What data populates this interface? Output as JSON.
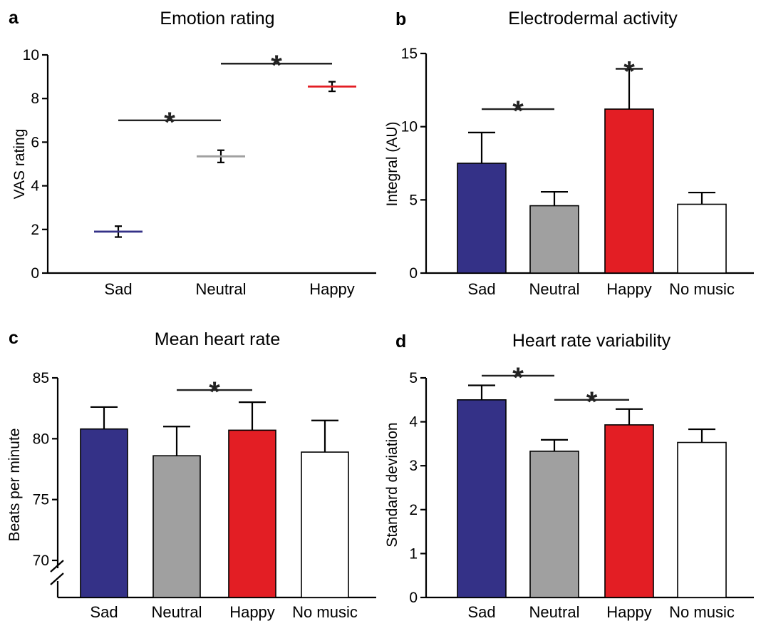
{
  "colors": {
    "sad": "#343187",
    "neutral": "#a0a0a0",
    "happy": "#e31e24",
    "no_music": "#ffffff"
  },
  "chart_data": [
    {
      "panel": "a",
      "type": "scatter",
      "title": "Emotion rating",
      "ylabel": "VAS rating",
      "xlabel": "",
      "ylim": [
        0,
        10
      ],
      "yticks": [
        "0",
        "2",
        "4",
        "6",
        "8",
        "10"
      ],
      "categories": [
        "Sad",
        "Neutral",
        "Happy"
      ],
      "values": [
        1.9,
        5.35,
        8.55
      ],
      "errors": [
        0.25,
        0.28,
        0.22
      ],
      "significance": [
        {
          "from": 0,
          "to": 1,
          "y": 7.0,
          "label": "*"
        },
        {
          "from": 1,
          "to": 2,
          "y": 9.6,
          "label": "*"
        }
      ],
      "grid": false,
      "legend": "none"
    },
    {
      "panel": "b",
      "type": "bar",
      "title": "Electrodermal activity",
      "ylabel": "Integral (AU)",
      "xlabel": "",
      "ylim": [
        0,
        15
      ],
      "yticks": [
        "0",
        "5",
        "10",
        "15"
      ],
      "categories": [
        "Sad",
        "Neutral",
        "Happy",
        "No music"
      ],
      "values": [
        7.5,
        4.6,
        11.2,
        4.7
      ],
      "errors": [
        2.1,
        0.95,
        2.75,
        0.8
      ],
      "significance": [
        {
          "from": 0,
          "to": 1,
          "y": 11.2,
          "label": "*"
        },
        {
          "bar": 2,
          "y": 14.5,
          "label": "*"
        }
      ],
      "grid": false,
      "legend": "none"
    },
    {
      "panel": "c",
      "type": "bar",
      "title": "Mean heart rate",
      "ylabel": "Beats per minute",
      "xlabel": "",
      "ylim": [
        70,
        85
      ],
      "axis_break": true,
      "yticks": [
        "70",
        "75",
        "80",
        "85"
      ],
      "categories": [
        "Sad",
        "Neutral",
        "Happy",
        "No music"
      ],
      "values": [
        80.8,
        78.6,
        80.7,
        78.9
      ],
      "errors": [
        1.8,
        2.4,
        2.3,
        2.6
      ],
      "significance": [
        {
          "from": 1,
          "to": 2,
          "y": 84.0,
          "label": "*"
        }
      ],
      "grid": false,
      "legend": "none"
    },
    {
      "panel": "d",
      "type": "bar",
      "title": "Heart rate variability",
      "ylabel": "Standard deviation",
      "xlabel": "",
      "ylim": [
        0,
        5
      ],
      "yticks": [
        "0",
        "1",
        "2",
        "3",
        "4",
        "5"
      ],
      "categories": [
        "Sad",
        "Neutral",
        "Happy",
        "No music"
      ],
      "values": [
        4.5,
        3.33,
        3.93,
        3.53
      ],
      "errors": [
        0.33,
        0.26,
        0.36,
        0.3
      ],
      "significance": [
        {
          "from": 0,
          "to": 1,
          "y": 5.05,
          "label": "*"
        },
        {
          "from": 1,
          "to": 2,
          "y": 4.5,
          "label": "*"
        }
      ],
      "grid": false,
      "legend": "none"
    }
  ]
}
